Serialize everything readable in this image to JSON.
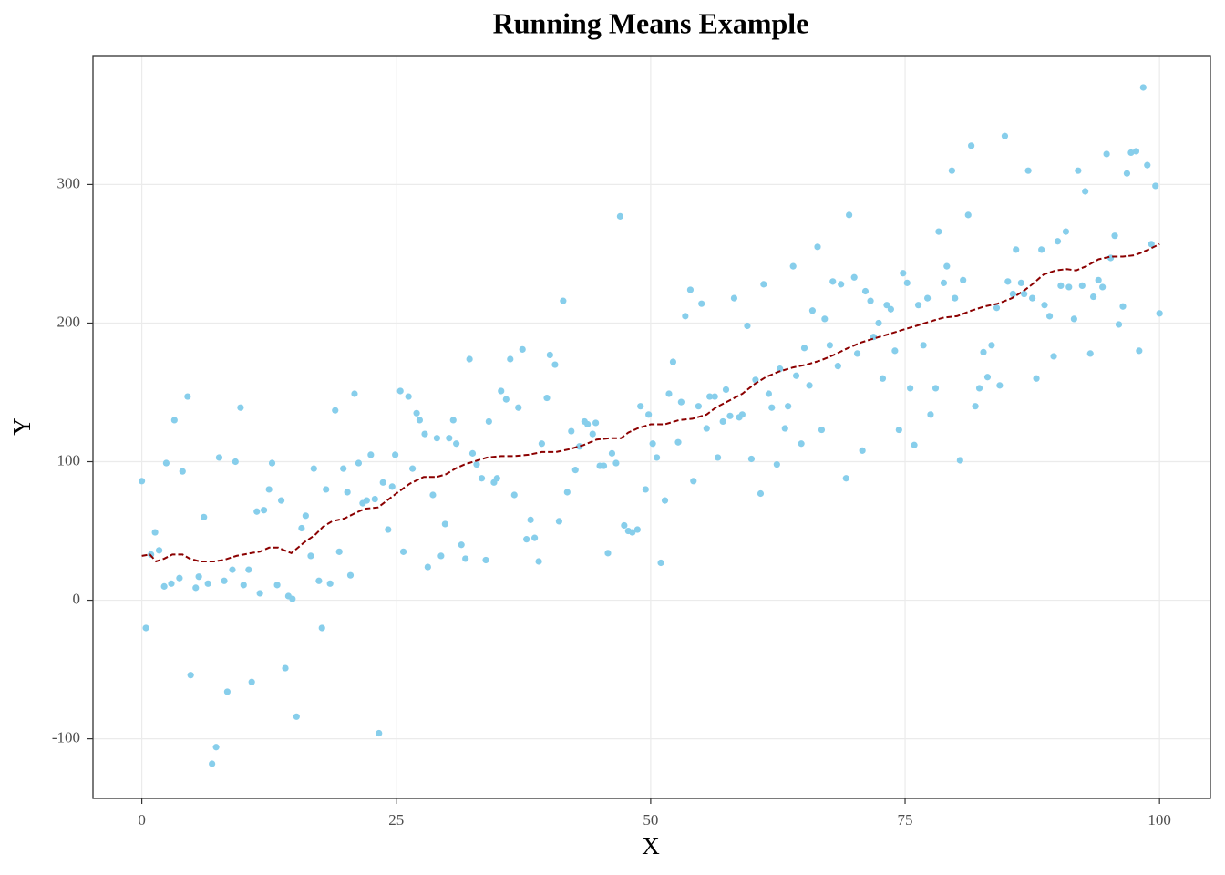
{
  "chart_data": {
    "type": "scatter",
    "title": "Running Means Example",
    "xlabel": "X",
    "ylabel": "Y",
    "xlim": [
      -4.8,
      105
    ],
    "ylim": [
      -143,
      393
    ],
    "xticks": [
      0,
      25,
      50,
      75,
      100
    ],
    "yticks": [
      -100,
      0,
      100,
      200,
      300
    ],
    "grid": true,
    "points": {
      "color": "#87ceeb",
      "x": [
        0,
        0.4,
        0.9,
        1.3,
        1.7,
        2.2,
        2.4,
        2.9,
        3.2,
        3.7,
        4,
        4.5,
        4.8,
        5.3,
        5.6,
        6.1,
        6.5,
        6.9,
        7.3,
        7.6,
        8.1,
        8.4,
        8.9,
        9.2,
        9.7,
        10,
        10.5,
        10.8,
        11.3,
        11.6,
        12,
        12.5,
        12.8,
        13.3,
        13.7,
        14.1,
        14.4,
        14.8,
        15.2,
        15.7,
        16.1,
        16.6,
        16.9,
        17.4,
        17.7,
        18.1,
        18.5,
        19,
        19.4,
        19.8,
        20.2,
        20.5,
        20.9,
        21.3,
        21.7,
        22.1,
        22.5,
        22.9,
        23.3,
        23.7,
        24.2,
        24.6,
        24.9,
        25.4,
        25.7,
        26.2,
        26.6,
        27,
        27.3,
        27.8,
        28.1,
        28.6,
        29,
        29.4,
        29.8,
        30.2,
        30.6,
        30.9,
        31.4,
        31.8,
        32.2,
        32.5,
        32.9,
        33.4,
        33.8,
        34.1,
        34.6,
        34.9,
        35.3,
        35.8,
        36.2,
        36.6,
        37,
        37.4,
        37.8,
        38.2,
        38.6,
        39,
        39.3,
        39.8,
        40.1,
        40.6,
        41,
        41.4,
        41.8,
        42.2,
        42.6,
        43,
        43.5,
        43.8,
        44.3,
        44.6,
        45,
        45.4,
        45.8,
        46.2,
        46.6,
        47,
        47.4,
        47.8,
        48.2,
        48.7,
        49,
        49.5,
        49.8,
        50.2,
        50.6,
        51,
        51.4,
        51.8,
        52.2,
        52.7,
        53,
        53.4,
        53.9,
        54.2,
        54.7,
        55,
        55.5,
        55.8,
        56.3,
        56.6,
        57.1,
        57.4,
        57.8,
        58.2,
        58.7,
        59,
        59.5,
        59.9,
        60.3,
        60.8,
        61.1,
        61.6,
        61.9,
        62.4,
        62.7,
        63.2,
        63.5,
        64,
        64.3,
        64.8,
        65.1,
        65.6,
        65.9,
        66.4,
        66.8,
        67.1,
        67.6,
        67.9,
        68.4,
        68.7,
        69.2,
        69.5,
        70,
        70.3,
        70.8,
        71.1,
        71.6,
        71.9,
        72.4,
        72.8,
        73.2,
        73.6,
        74,
        74.4,
        74.8,
        75.2,
        75.5,
        75.9,
        76.3,
        76.8,
        77.2,
        77.5,
        78,
        78.3,
        78.8,
        79.1,
        79.6,
        79.9,
        80.4,
        80.7,
        81.2,
        81.5,
        81.9,
        82.3,
        82.7,
        83.1,
        83.5,
        84,
        84.3,
        84.8,
        85.1,
        85.6,
        85.9,
        86.4,
        86.7,
        87.1,
        87.5,
        87.9,
        88.4,
        88.7,
        89.2,
        89.6,
        90,
        90.3,
        90.8,
        91.1,
        91.6,
        92,
        92.4,
        92.7,
        93.2,
        93.5,
        94,
        94.4,
        94.8,
        95.2,
        95.6,
        96,
        96.4,
        96.8,
        97.2,
        97.7,
        98,
        98.4,
        98.8,
        99.2,
        99.6,
        100
      ],
      "y": [
        86,
        -20,
        33,
        49,
        36,
        10,
        99,
        12,
        130,
        16,
        93,
        147,
        -54,
        9,
        17,
        60,
        12,
        -118,
        -106,
        103,
        14,
        -66,
        22,
        100,
        139,
        11,
        22,
        -59,
        64,
        5,
        65,
        80,
        99,
        11,
        72,
        -49,
        3,
        1,
        -84,
        52,
        61,
        32,
        95,
        14,
        -20,
        80,
        12,
        137,
        35,
        95,
        78,
        18,
        149,
        99,
        70,
        72,
        105,
        73,
        -96,
        85,
        51,
        82,
        105,
        151,
        35,
        147,
        95,
        135,
        130,
        120,
        24,
        76,
        117,
        32,
        55,
        117,
        130,
        113,
        40,
        30,
        174,
        106,
        98,
        88,
        29,
        129,
        85,
        88,
        151,
        145,
        174,
        76,
        139,
        181,
        44,
        58,
        45,
        28,
        113,
        146,
        177,
        170,
        57,
        216,
        78,
        122,
        94,
        111,
        129,
        127,
        120,
        128,
        97,
        97,
        34,
        106,
        99,
        277,
        54,
        50,
        49,
        51,
        140,
        80,
        134,
        113,
        103,
        27,
        72,
        149,
        172,
        114,
        143,
        205,
        224,
        86,
        140,
        214,
        124,
        147,
        147,
        103,
        129,
        152,
        133,
        218,
        132,
        134,
        198,
        102,
        159,
        77,
        228,
        149,
        139,
        98,
        167,
        124,
        140,
        241,
        162,
        113,
        182,
        155,
        209,
        255,
        123,
        203,
        184,
        230,
        169,
        228,
        88,
        278,
        233,
        178,
        108,
        223,
        216,
        190,
        200,
        160,
        213,
        210,
        180,
        123,
        236,
        229,
        153,
        112,
        213,
        184,
        218,
        134,
        153,
        266,
        229,
        241,
        310,
        218,
        101,
        231,
        278,
        328,
        140,
        153,
        179,
        161,
        184,
        211,
        155,
        335,
        230,
        221,
        253,
        229,
        221,
        310,
        218,
        160,
        253,
        213,
        205,
        176,
        259,
        227,
        266,
        226,
        203,
        310,
        227,
        295,
        178,
        219,
        231,
        226,
        322,
        247,
        263,
        199,
        212,
        308,
        323,
        324,
        180,
        370,
        314,
        257,
        299,
        207
      ]
    },
    "running_mean": {
      "color": "#8b0000",
      "x": [
        0,
        0.8,
        1.4,
        2.2,
        3,
        4,
        4.7,
        5.7,
        7.1,
        8,
        9.3,
        10.7,
        11.6,
        12.5,
        13.4,
        14,
        14.7,
        16,
        17,
        17.8,
        18.7,
        19.9,
        21,
        21.9,
        23.2,
        24.1,
        25,
        26.3,
        27.7,
        29,
        29.9,
        30.8,
        31.7,
        33,
        33.9,
        35.3,
        36.6,
        38,
        39.3,
        40.7,
        42,
        43.4,
        44.7,
        46.1,
        47.1,
        47.8,
        48.7,
        50,
        51.4,
        52.8,
        54.1,
        55.5,
        56.4,
        57.7,
        59,
        60.2,
        61.3,
        62.6,
        64,
        65.3,
        66.7,
        68,
        69.4,
        70.7,
        72,
        73.4,
        74.7,
        76.1,
        77.4,
        78.8,
        80.1,
        81.5,
        82.8,
        84.1,
        85.5,
        86.6,
        87.5,
        88.6,
        89.8,
        90.9,
        91.8,
        92.8,
        94,
        95.2,
        96.4,
        97.6,
        98.9,
        100
      ],
      "y": [
        32,
        33,
        28,
        30,
        33,
        33,
        30,
        28,
        28,
        29,
        32,
        34,
        35,
        38,
        38,
        36,
        34,
        42,
        47,
        53,
        57,
        59,
        63,
        66,
        67,
        72,
        77,
        84,
        89,
        89,
        91,
        95,
        98,
        101,
        103,
        104,
        104,
        105,
        107,
        107,
        109,
        112,
        116,
        117,
        117,
        121,
        124,
        127,
        127,
        130,
        131,
        134,
        139,
        144,
        149,
        156,
        161,
        165,
        168,
        170,
        173,
        177,
        182,
        186,
        189,
        192,
        195,
        198,
        201,
        204,
        205,
        209,
        212,
        214,
        218,
        223,
        228,
        235,
        238,
        239,
        238,
        241,
        246,
        248,
        248,
        249,
        253,
        257
      ]
    }
  }
}
